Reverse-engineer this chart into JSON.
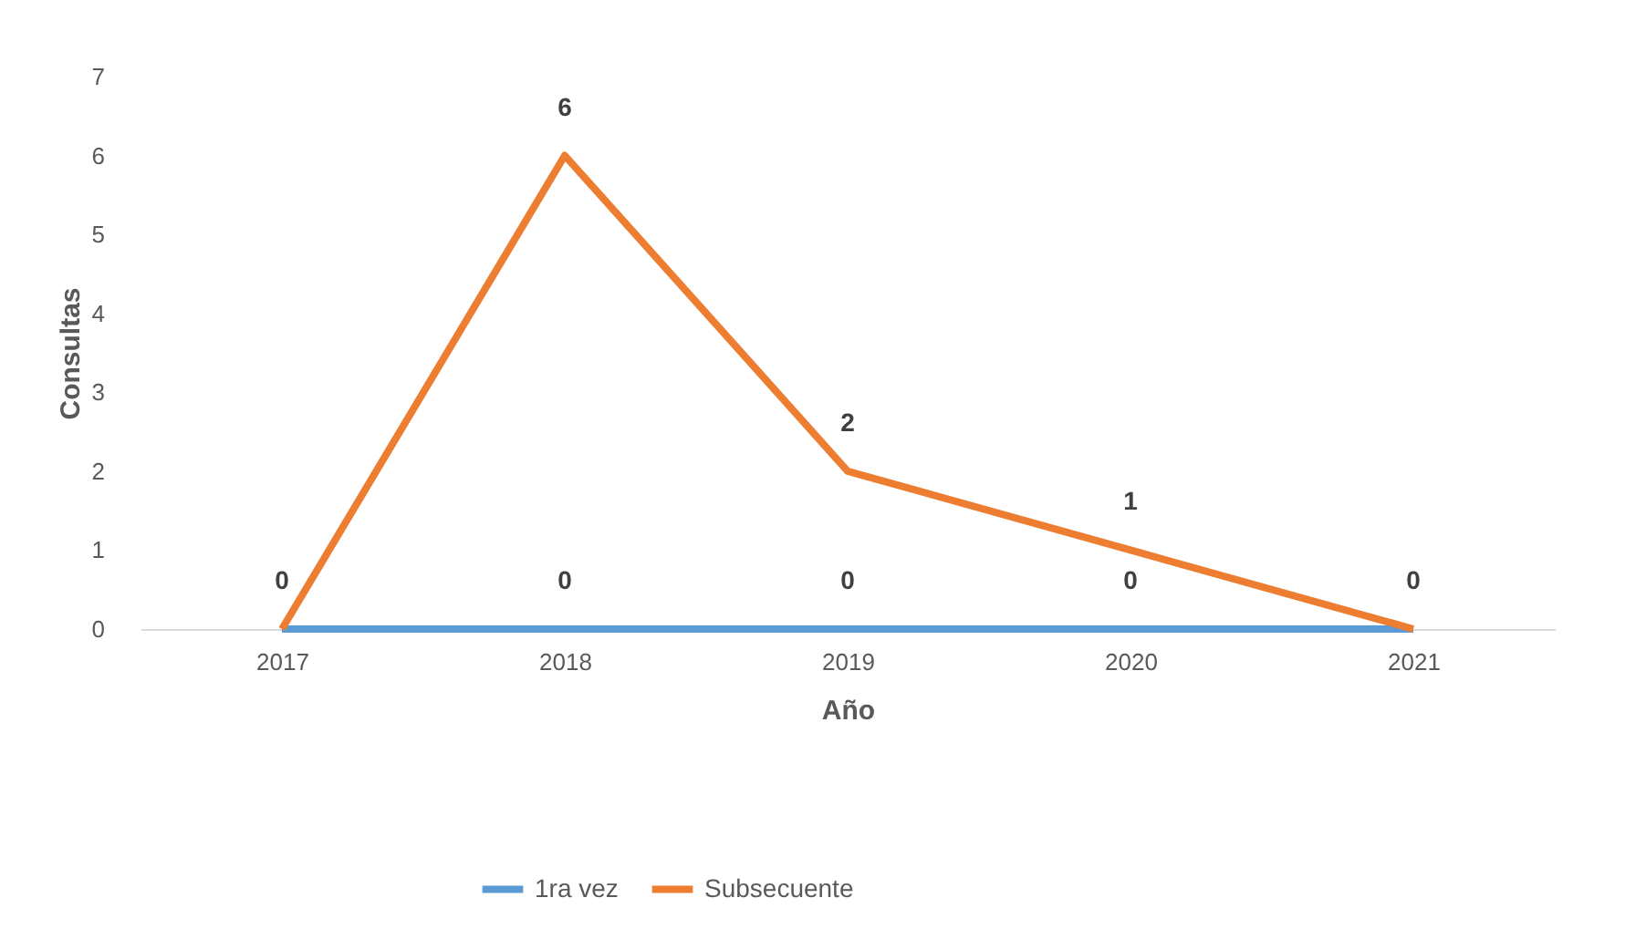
{
  "chart_data": {
    "type": "line",
    "xlabel": "Año",
    "ylabel": "Consultas",
    "categories": [
      "2017",
      "2018",
      "2019",
      "2020",
      "2021"
    ],
    "series": [
      {
        "name": "1ra vez",
        "color": "#5b9bd5",
        "values": [
          0,
          0,
          0,
          0,
          0
        ],
        "value_labels": [
          null,
          "0",
          "0",
          "0",
          null
        ]
      },
      {
        "name": "Subsecuente",
        "color": "#ed7d31",
        "values": [
          0,
          6,
          2,
          1,
          0
        ],
        "value_labels": [
          "0",
          "6",
          "2",
          "1",
          "0"
        ]
      }
    ],
    "ylim": [
      0,
      7
    ],
    "yticks": [
      0,
      1,
      2,
      3,
      4,
      5,
      6,
      7
    ],
    "grid": false,
    "legend": "bottom"
  }
}
